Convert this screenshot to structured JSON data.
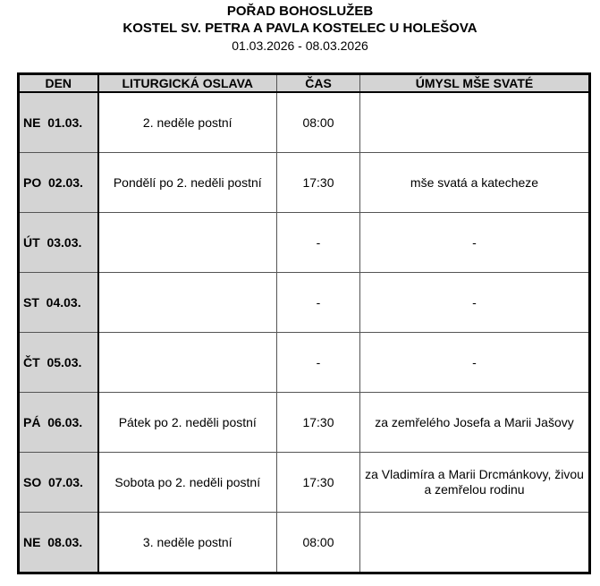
{
  "header": {
    "title": "POŘAD BOHOSLUŽEB",
    "church": "KOSTEL SV. PETRA A PAVLA KOSTELEC U HOLEŠOVA",
    "date_range": "01.03.2026 - 08.03.2026"
  },
  "table": {
    "columns": [
      "DEN",
      "LITURGICKÁ OSLAVA",
      "ČAS",
      "ÚMYSL MŠE SVATÉ"
    ],
    "rows": [
      {
        "day": "NE  01.03.",
        "celebration": "2. neděle postní",
        "time": "08:00",
        "intention": ""
      },
      {
        "day": "PO  02.03.",
        "celebration": "Pondělí po 2. neděli postní",
        "time": "17:30",
        "intention": "mše svatá a katecheze"
      },
      {
        "day": "ÚT  03.03.",
        "celebration": "",
        "time": "-",
        "intention": "-"
      },
      {
        "day": "ST  04.03.",
        "celebration": "",
        "time": "-",
        "intention": "-"
      },
      {
        "day": "ČT  05.03.",
        "celebration": "",
        "time": "-",
        "intention": "-"
      },
      {
        "day": "PÁ  06.03.",
        "celebration": "Pátek po 2. neděli postní",
        "time": "17:30",
        "intention": "za zemřelého Josefa a Marii Jašovy"
      },
      {
        "day": "SO  07.03.",
        "celebration": "Sobota po 2. neděli postní",
        "time": "17:30",
        "intention": "za Vladimíra a Marii Drcmánkovy, živou a zemřelou rodinu"
      },
      {
        "day": "NE  08.03.",
        "celebration": "3. neděle postní",
        "time": "08:00",
        "intention": ""
      }
    ]
  },
  "colors": {
    "header_fill": "#d4d4d4",
    "day_fill": "#d4d4d4"
  }
}
